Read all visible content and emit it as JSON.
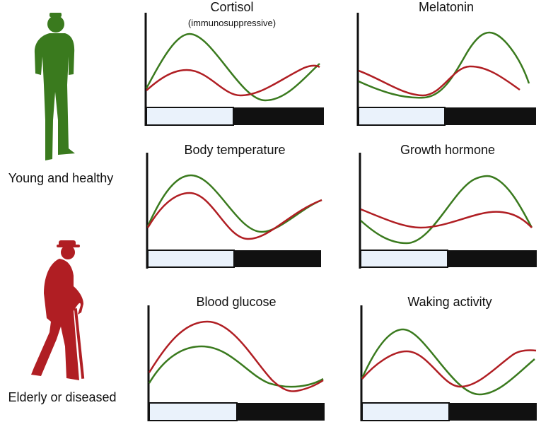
{
  "colors": {
    "young": "#3a7a1e",
    "elderly": "#b01e23",
    "day": "#eaf2fb",
    "night": "#111111",
    "axis": "#111111"
  },
  "groups": [
    {
      "label": "Young and healthy",
      "color": "#3a7a1e",
      "icon": "standing-man-icon"
    },
    {
      "label": "Elderly or diseased",
      "color": "#b01e23",
      "icon": "elderly-man-with-cane-icon"
    }
  ],
  "panels": [
    {
      "title": "Cortisol",
      "subtitle": "(immunosuppressive)"
    },
    {
      "title": "Melatonin",
      "subtitle": ""
    },
    {
      "title": "Body temperature",
      "subtitle": ""
    },
    {
      "title": "Growth hormone",
      "subtitle": ""
    },
    {
      "title": "Blood glucose",
      "subtitle": ""
    },
    {
      "title": "Waking activity",
      "subtitle": ""
    }
  ]
}
